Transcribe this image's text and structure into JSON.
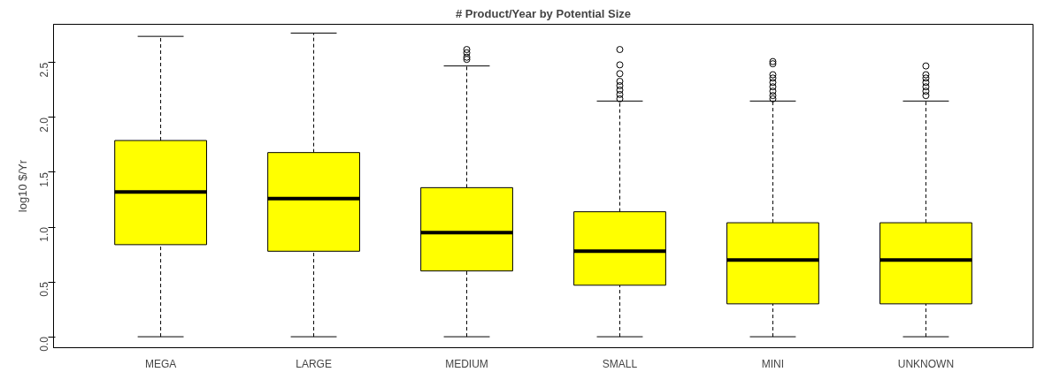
{
  "chart_data": {
    "type": "box",
    "title": "# Product/Year by Potential Size",
    "ylabel": "log10 $/Yr",
    "categories": [
      "MEGA",
      "LARGE",
      "MEDIUM",
      "SMALL",
      "MINI",
      "UNKNOWN"
    ],
    "color": "#ffff00",
    "boxes": [
      {
        "low": 0,
        "q1": 0.84,
        "median": 1.32,
        "q3": 1.79,
        "high": 2.74
      },
      {
        "low": 0,
        "q1": 0.78,
        "median": 1.26,
        "q3": 1.68,
        "high": 2.77
      },
      {
        "low": 0,
        "q1": 0.6,
        "median": 0.95,
        "q3": 1.36,
        "high": 2.47,
        "outliers": [
          2.53,
          2.55,
          2.59,
          2.62
        ]
      },
      {
        "low": 0,
        "q1": 0.47,
        "median": 0.78,
        "q3": 1.14,
        "high": 2.15,
        "outliers": [
          2.17,
          2.21,
          2.25,
          2.29,
          2.33,
          2.4,
          2.48,
          2.62
        ]
      },
      {
        "low": 0,
        "q1": 0.3,
        "median": 0.7,
        "q3": 1.04,
        "high": 2.15,
        "outliers": [
          2.17,
          2.2,
          2.24,
          2.28,
          2.32,
          2.36,
          2.39,
          2.49,
          2.51
        ]
      },
      {
        "low": 0,
        "q1": 0.3,
        "median": 0.7,
        "q3": 1.04,
        "high": 2.15,
        "outliers": [
          2.2,
          2.24,
          2.28,
          2.32,
          2.36,
          2.39,
          2.47
        ]
      }
    ],
    "ylim": [
      -0.1,
      2.85
    ],
    "yticks": [
      {
        "value": 0,
        "label": "0.0"
      },
      0.5,
      {
        "value": 1,
        "label": "1.0"
      },
      1.5,
      {
        "value": 2,
        "label": "2.0"
      },
      2.5
    ],
    "grid": false,
    "marker": "circle"
  }
}
